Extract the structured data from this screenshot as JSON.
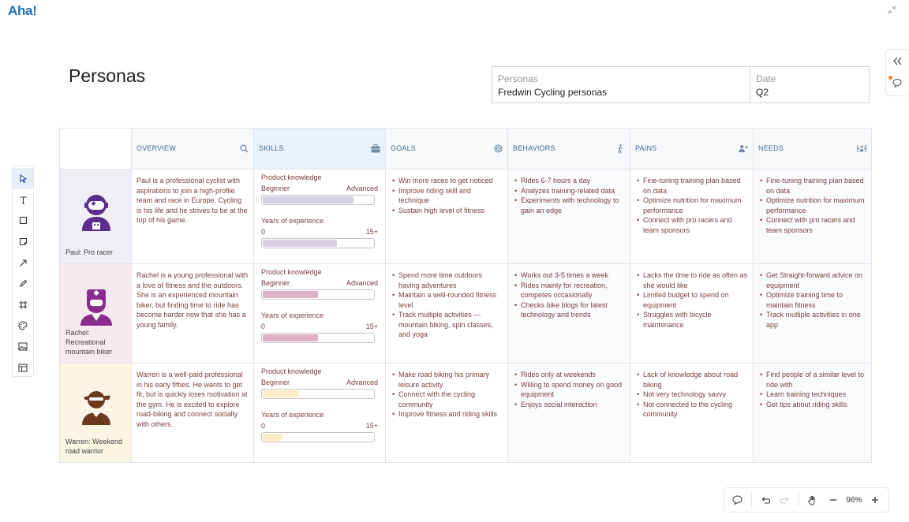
{
  "app": {
    "logo": "Aha!"
  },
  "page": {
    "title": "Personas"
  },
  "meta": {
    "personas_label": "Personas",
    "personas_value": "Fredwin Cycling personas",
    "date_label": "Date",
    "date_value": "Q2"
  },
  "columns": {
    "overview": "OVERVIEW",
    "skills": "SKILLS",
    "goals": "GOALS",
    "behaviors": "BEHAVIORS",
    "pains": "PAINS",
    "needs": "NEEDS"
  },
  "skills_labels": {
    "knowledge": "Product knowledge",
    "knowledge_min": "Beginner",
    "knowledge_max": "Advanced",
    "experience": "Years of experience",
    "experience_min": "0",
    "experience_max": "15+"
  },
  "personas": [
    {
      "name": "Paul: Pro racer",
      "color": "#5b2d91",
      "knowledge_level": 0.82,
      "experience_level": 0.67,
      "bar_color": "#d6d0e2",
      "overview": "Paul is a professional cyclist with aspirations to join a high-profile team and race in Europe. Cycling is his life and he strives to be at the top of his game.",
      "goals": [
        "Win more races to get noticed",
        "Improve riding skill and technique",
        "Sustain high level of fitness"
      ],
      "behaviors": [
        "Rides 6-7 hours a day",
        "Analyzes training-related data",
        "Experiments with technology to gain an edge"
      ],
      "pains": [
        "Fine-tuning training plan based on data",
        "Optimize nutrition for maximum performance",
        "Connect with pro racers and team sponsors"
      ],
      "needs": [
        "Fine-tuning training plan based on data",
        "Optimize nutrition for maximum performance",
        "Connect with pro racers and team sponsors"
      ]
    },
    {
      "name": "Rachel: Recreational mountain biker",
      "color": "#8a2a8e",
      "knowledge_level": 0.5,
      "experience_level": 0.5,
      "bar_color": "#dcb2c4",
      "overview": "Rachel is a young professional with a love of fitness and the outdoors. She is an experienced mountain biker, but finding time to ride has become harder now that she has a young family.",
      "goals": [
        "Spend more time outdoors having adventures",
        "Maintain a well-rounded fitness level",
        "Track multiple activities — mountain biking, spin classes, and yoga"
      ],
      "behaviors": [
        "Works out 3-5 times a week",
        "Rides mainly for recreation, competes occasionally",
        "Checks bike blogs for latest technology and trends"
      ],
      "pains": [
        "Lacks the time to ride as often as she would like",
        "Limited budget to spend on equipment",
        "Struggles with bicycle maintenance"
      ],
      "needs": [
        "Get Straight-forward advice on equipment",
        "Optimize training time to maintain fitness",
        "Track multiple activities in one app"
      ]
    },
    {
      "name": "Warren: Weekend road warrior",
      "color": "#6b3a1f",
      "knowledge_level": 0.33,
      "experience_level": 0.18,
      "bar_color": "#faecc9",
      "overview": "Warren is a well-paid professional in his early fifties. He wants to get fit, but is quickly loses motivation at the gym. He is excited to explore road-biking and connect socially with others.",
      "goals": [
        "Make road biking his primary leisure activity",
        "Connect with the cycling community",
        "Improve fitness and riding skills"
      ],
      "behaviors": [
        "Rides only at weekends",
        "Willing to spend money on good equipment",
        "Enjoys social interaction"
      ],
      "pains": [
        "Lack of knowledge about road biking",
        "Not very technology savvy",
        "Not connected to the cycling community"
      ],
      "needs": [
        "Find people of a similar level to ride with",
        "Learn training techniques",
        "Get tips about riding skills"
      ]
    }
  ],
  "zoom": {
    "value": "96%"
  }
}
